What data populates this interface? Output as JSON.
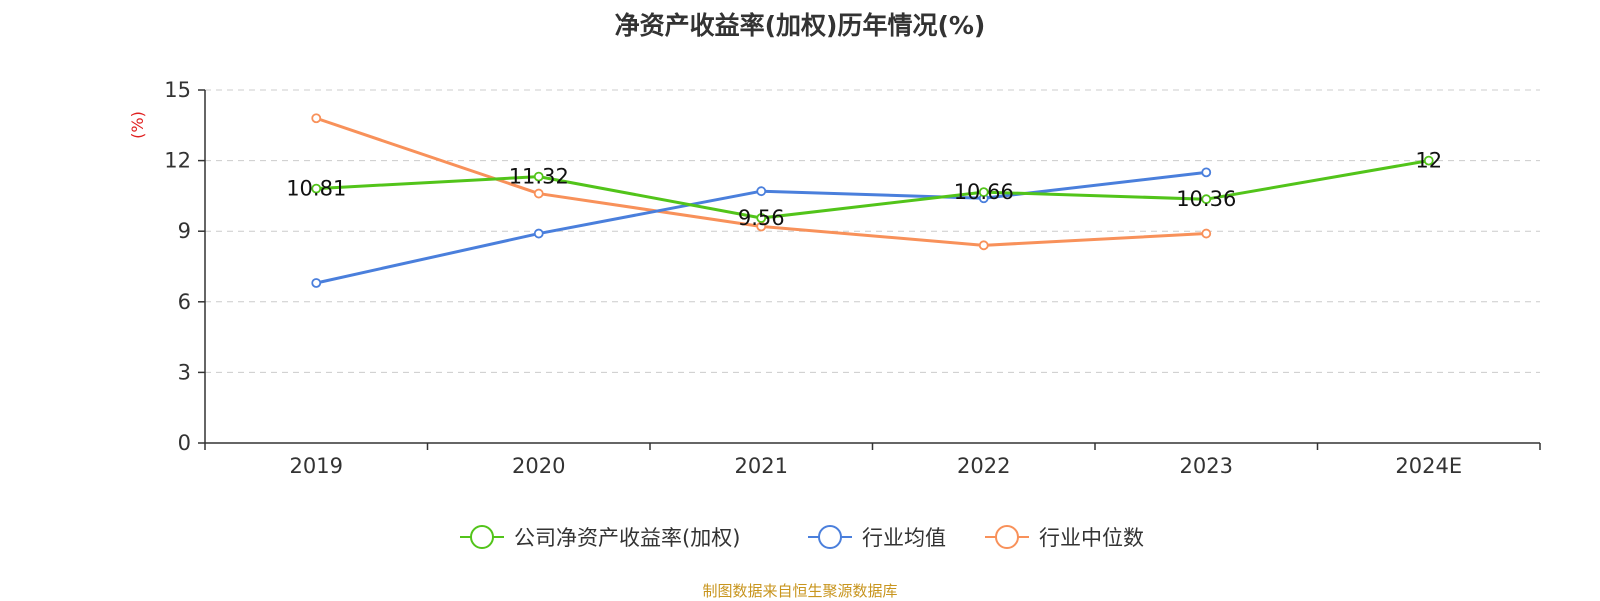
{
  "chart_data": {
    "type": "line",
    "title": "净资产收益率(加权)历年情况(%)",
    "ylabel": "(%)",
    "xlabel": "",
    "ylim": [
      0,
      15
    ],
    "yticks": [
      0,
      3,
      6,
      9,
      12,
      15
    ],
    "grid": true,
    "legend_position": "bottom-center",
    "categories": [
      "2019",
      "2020",
      "2021",
      "2022",
      "2023",
      "2024E"
    ],
    "series": [
      {
        "name": "公司净资产收益率(加权)",
        "color": "#52c41a",
        "values": [
          10.81,
          11.32,
          9.56,
          10.66,
          10.36,
          12
        ],
        "data_labels": [
          "10.81",
          "11.32",
          "9.56",
          "10.66",
          "10.36",
          "12"
        ]
      },
      {
        "name": "行业均值",
        "color": "#4a7fdc",
        "values": [
          6.8,
          8.9,
          10.7,
          10.4,
          11.5,
          null
        ]
      },
      {
        "name": "行业中位数",
        "color": "#f8915a",
        "values": [
          13.8,
          10.6,
          9.2,
          8.4,
          8.9,
          null
        ]
      }
    ]
  },
  "source_note": "制图数据来自恒生聚源数据库"
}
